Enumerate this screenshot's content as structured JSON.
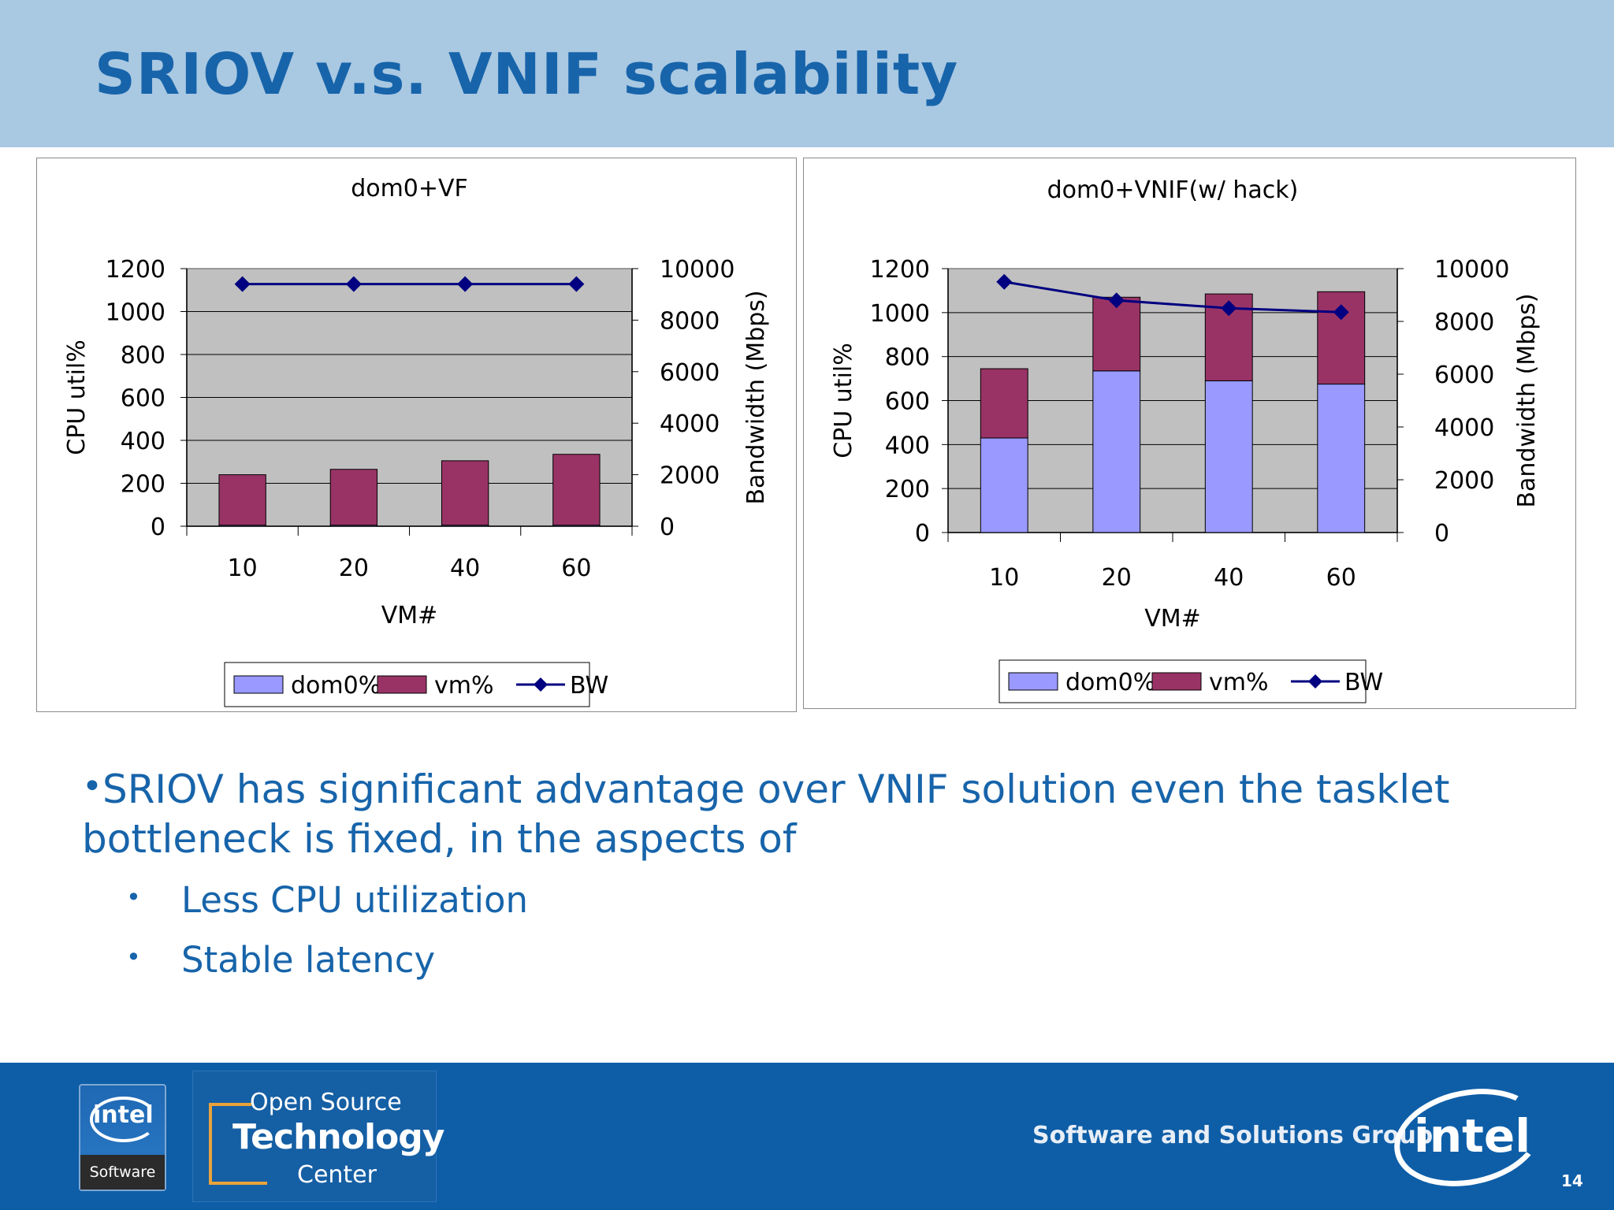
{
  "slide": {
    "title": "SRIOV v.s. VNIF scalability",
    "page_number": "14"
  },
  "bullets": {
    "main_dot": "•",
    "main_text": "SRIOV has significant advantage over VNIF solution even the tasklet bottleneck is fixed, in the aspects of",
    "sub_dot": "•",
    "sub_items": [
      "Less CPU utilization",
      "Stable latency"
    ]
  },
  "footer": {
    "intel_software_logo_word": "intel",
    "intel_software_logo_sub": "Software",
    "ostc_line1": "Open Source",
    "ostc_line2": "Technology",
    "ostc_line3": "Center",
    "group_text": "Software and Solutions Group",
    "intel_logo_word": "intel"
  },
  "colors": {
    "title": "#1764aa",
    "header_band": "#a9c8e2",
    "footer_band": "#0e5ea7",
    "plot_bg": "#c0c0c0",
    "dom0_bar": "#9999ff",
    "vm_bar": "#993366",
    "bw_line": "#000080"
  },
  "chart_data": [
    {
      "type": "bar",
      "stacked": true,
      "secondary_line": true,
      "title": "dom0+VF",
      "xlabel": "VM#",
      "ylabel": "CPU util%",
      "y2label": "Bandwidth (Mbps)",
      "categories": [
        "10",
        "20",
        "40",
        "60"
      ],
      "ylim": [
        0,
        1200
      ],
      "y2lim": [
        0,
        10000
      ],
      "yticks": [
        "0",
        "200",
        "400",
        "600",
        "800",
        "1000",
        "1200"
      ],
      "y2ticks": [
        "0",
        "2000",
        "4000",
        "6000",
        "8000",
        "10000"
      ],
      "grid": true,
      "legend_position": "bottom",
      "series": [
        {
          "name": "dom0%",
          "kind": "bar",
          "values": [
            5,
            5,
            5,
            5
          ]
        },
        {
          "name": "vm%",
          "kind": "bar",
          "values": [
            235,
            260,
            300,
            330
          ]
        },
        {
          "name": "BW",
          "kind": "line",
          "axis": "secondary",
          "values": [
            9400,
            9400,
            9400,
            9400
          ]
        }
      ]
    },
    {
      "type": "bar",
      "stacked": true,
      "secondary_line": true,
      "title": "dom0+VNIF(w/ hack)",
      "xlabel": "VM#",
      "ylabel": "CPU util%",
      "y2label": "Bandwidth (Mbps)",
      "categories": [
        "10",
        "20",
        "40",
        "60"
      ],
      "ylim": [
        0,
        1200
      ],
      "y2lim": [
        0,
        10000
      ],
      "yticks": [
        "0",
        "200",
        "400",
        "600",
        "800",
        "1000",
        "1200"
      ],
      "y2ticks": [
        "0",
        "2000",
        "4000",
        "6000",
        "8000",
        "10000"
      ],
      "grid": true,
      "legend_position": "bottom",
      "series": [
        {
          "name": "dom0%",
          "kind": "bar",
          "values": [
            430,
            735,
            690,
            675
          ]
        },
        {
          "name": "vm%",
          "kind": "bar",
          "values": [
            315,
            335,
            395,
            420
          ]
        },
        {
          "name": "BW",
          "kind": "line",
          "axis": "secondary",
          "values": [
            9500,
            8800,
            8500,
            8350
          ]
        }
      ]
    }
  ]
}
